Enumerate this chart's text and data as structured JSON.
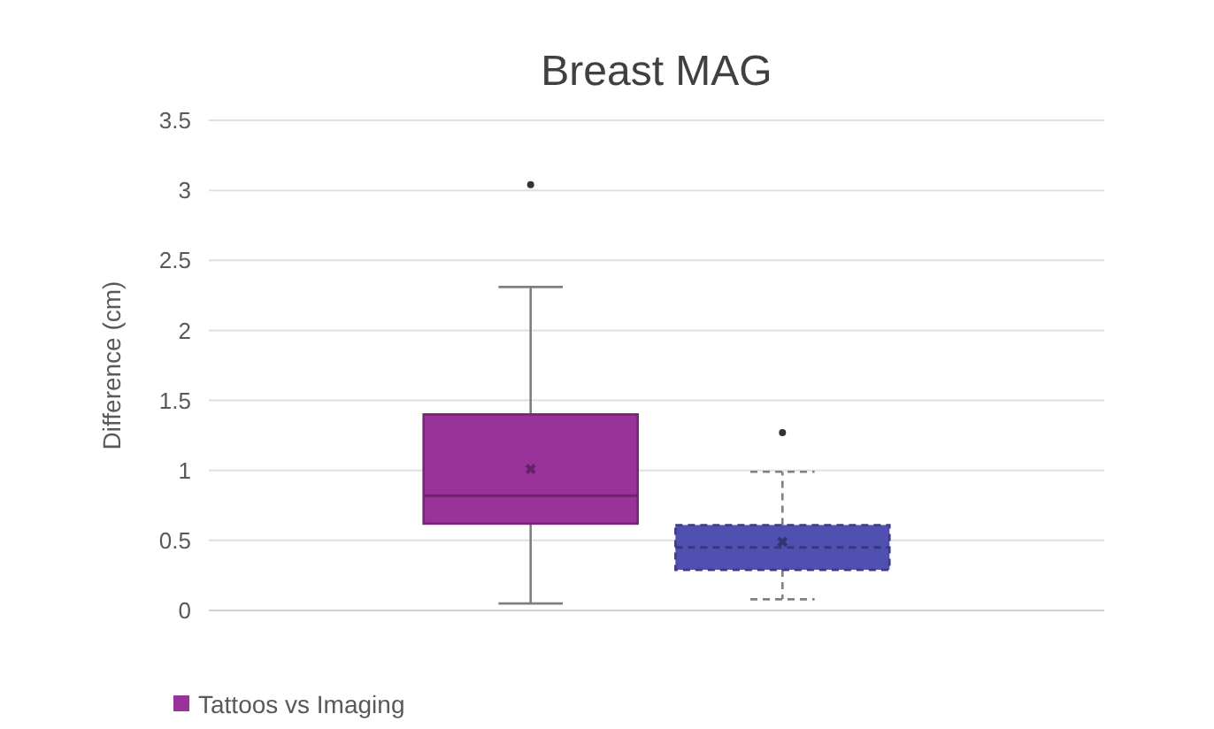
{
  "chart_data": {
    "type": "box",
    "title": "Breast MAG",
    "ylabel": "Difference (cm)",
    "categories": [
      null
    ],
    "ylim": [
      0,
      3.5
    ],
    "yticks": [
      0,
      0.5,
      1,
      1.5,
      2,
      2.5,
      3,
      3.5
    ],
    "grid": "y",
    "legend": "bottom",
    "series": [
      {
        "name": "Tattoos vs Imaging",
        "color": "#993399",
        "boxes": [
          {
            "low": 0.05,
            "q1": 0.62,
            "median": 0.82,
            "q3": 1.4,
            "high": 2.31,
            "mean": 1.01,
            "outliers": [
              3.04
            ]
          }
        ]
      },
      {
        "color": "#5050b0",
        "line_style": "dashed",
        "boxes": [
          {
            "low": 0.08,
            "q1": 0.29,
            "median": 0.45,
            "q3": 0.61,
            "high": 0.99,
            "mean": 0.49,
            "outliers": [
              1.27
            ]
          }
        ]
      }
    ]
  }
}
